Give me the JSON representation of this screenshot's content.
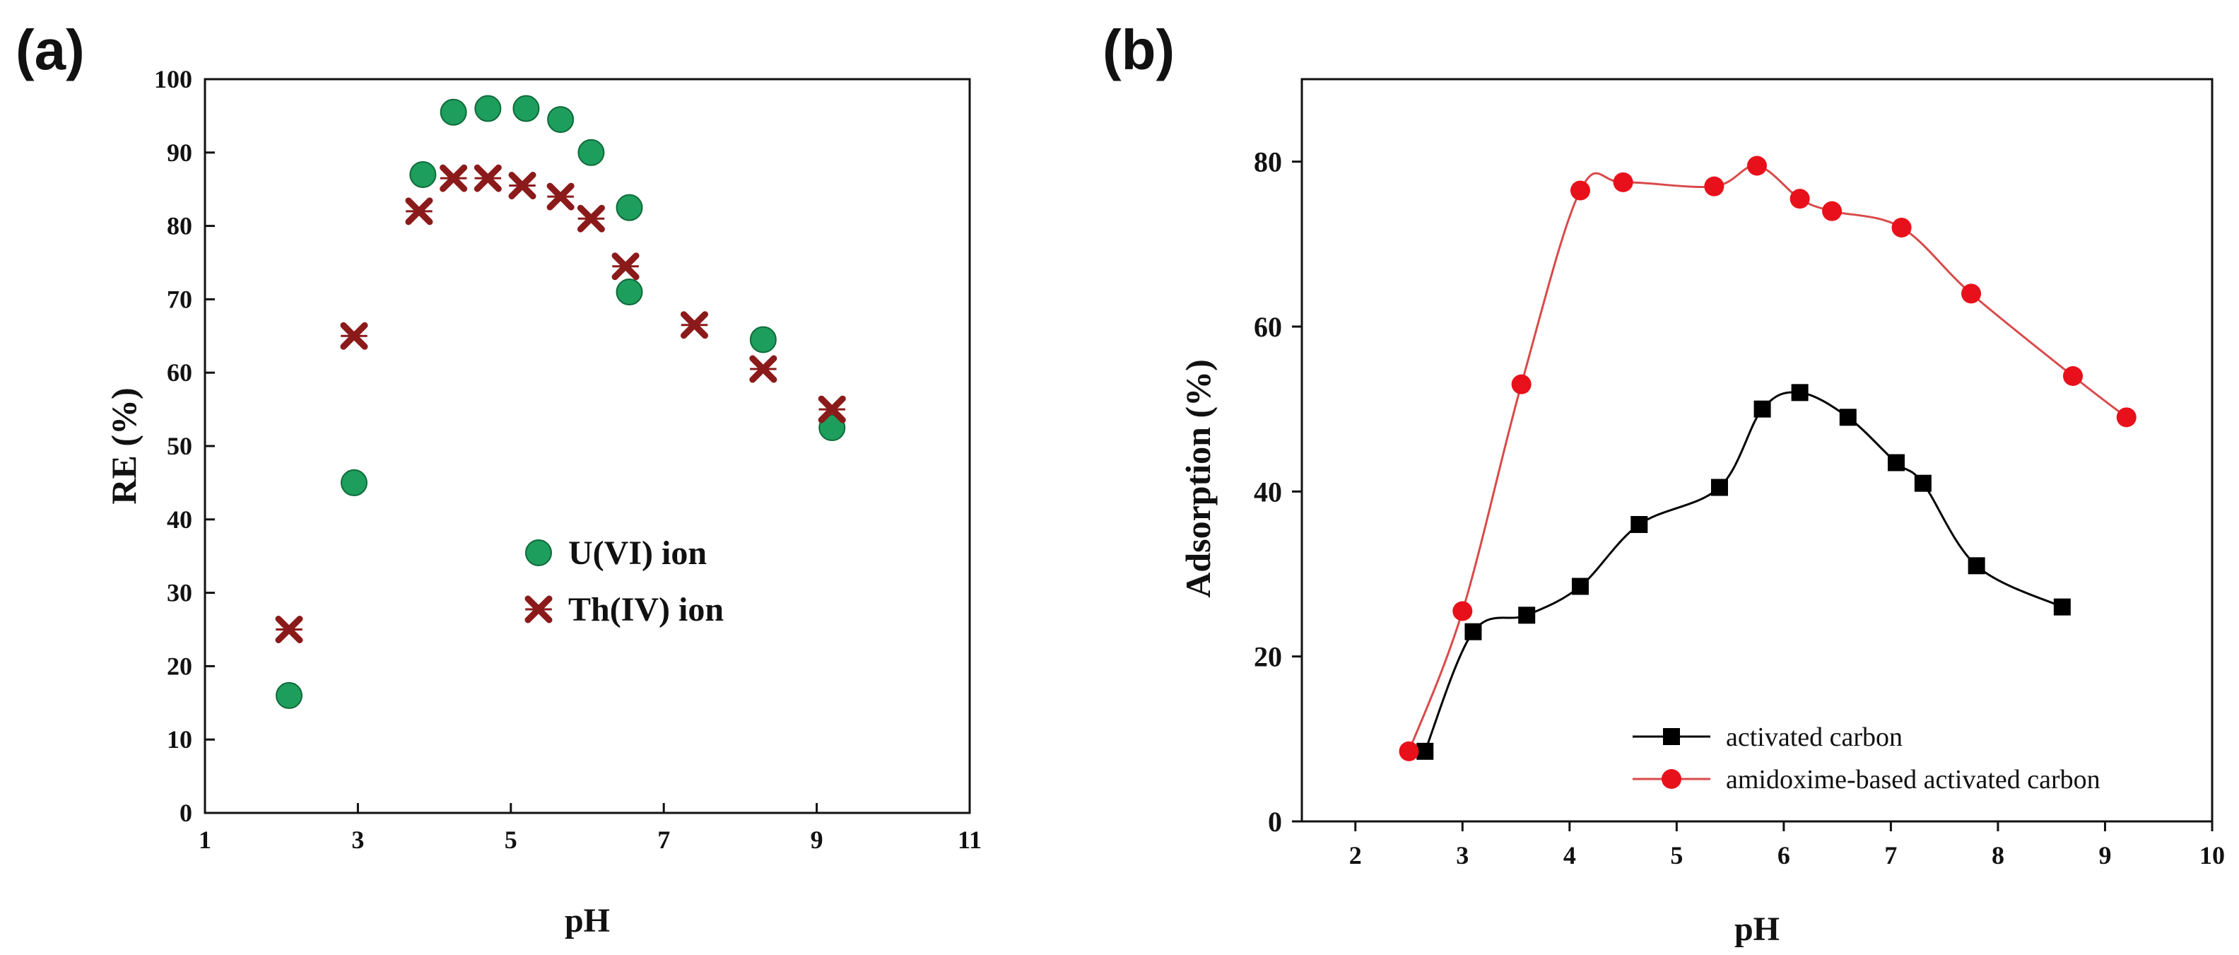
{
  "chart_data": [
    {
      "panel_label": "(a)",
      "type": "scatter",
      "xlabel": "pH",
      "ylabel": "RE (%)",
      "xlim": [
        1,
        11
      ],
      "ylim": [
        0,
        100
      ],
      "xticks": [
        1,
        3,
        5,
        7,
        9,
        11
      ],
      "xtick_labels": [
        "1",
        "3",
        "5",
        "7",
        "9",
        "11"
      ],
      "yticks": [
        0,
        10,
        20,
        30,
        40,
        50,
        60,
        70,
        80,
        90,
        100
      ],
      "ytick_labels": [
        "0",
        "10",
        "20",
        "30",
        "40",
        "50",
        "60",
        "70",
        "80",
        "90",
        "100"
      ],
      "grid": false,
      "legend_position": "center-right",
      "series": [
        {
          "name": "U(VI) ion",
          "marker": "circle",
          "color": "#1e9e5c",
          "x": [
            2.1,
            2.95,
            3.85,
            4.25,
            4.7,
            5.2,
            5.65,
            6.05,
            6.55,
            6.55,
            8.3,
            9.2
          ],
          "y": [
            16,
            45,
            87,
            95.5,
            96,
            96,
            94.5,
            90,
            82.5,
            71,
            64.5,
            52.5
          ]
        },
        {
          "name": "Th(IV) ion",
          "marker": "x",
          "color": "#8b1a1a",
          "x": [
            2.1,
            2.95,
            3.8,
            4.25,
            4.7,
            5.15,
            5.65,
            6.05,
            6.5,
            7.4,
            8.3,
            9.2
          ],
          "y": [
            25,
            65,
            82,
            86.5,
            86.5,
            85.5,
            84,
            81,
            74.5,
            66.5,
            60.5,
            55
          ]
        }
      ]
    },
    {
      "panel_label": "(b)",
      "type": "line",
      "xlabel": "pH",
      "ylabel": "Adsorption (%)",
      "xlim": [
        1.5,
        10
      ],
      "ylim": [
        0,
        90
      ],
      "xticks": [
        2,
        3,
        4,
        5,
        6,
        7,
        8,
        9,
        10
      ],
      "xtick_labels": [
        "2",
        "3",
        "4",
        "5",
        "6",
        "7",
        "8",
        "9",
        "10"
      ],
      "yticks": [
        0,
        20,
        40,
        60,
        80
      ],
      "ytick_labels": [
        "0",
        "20",
        "40",
        "60",
        "80"
      ],
      "grid": false,
      "legend_position": "bottom-right",
      "series": [
        {
          "name": "activated carbon",
          "marker": "square",
          "color": "#000000",
          "x": [
            2.65,
            3.1,
            3.6,
            4.1,
            4.65,
            5.4,
            5.8,
            6.15,
            6.6,
            7.05,
            7.3,
            7.8,
            8.6
          ],
          "y": [
            8.5,
            23,
            25,
            28.5,
            36,
            40.5,
            50,
            52,
            49,
            43.5,
            41,
            31,
            26
          ]
        },
        {
          "name": "amidoxime-based activated carbon",
          "marker": "circle",
          "color": "#e8101a",
          "line_color": "#d94a4a",
          "x": [
            2.5,
            3.0,
            3.55,
            4.1,
            4.5,
            5.35,
            5.75,
            6.15,
            6.45,
            7.1,
            7.75,
            8.7,
            9.2
          ],
          "y": [
            8.5,
            25.5,
            53,
            76.5,
            77.5,
            77,
            79.5,
            75.5,
            74,
            72,
            64,
            54,
            49
          ]
        }
      ]
    }
  ]
}
